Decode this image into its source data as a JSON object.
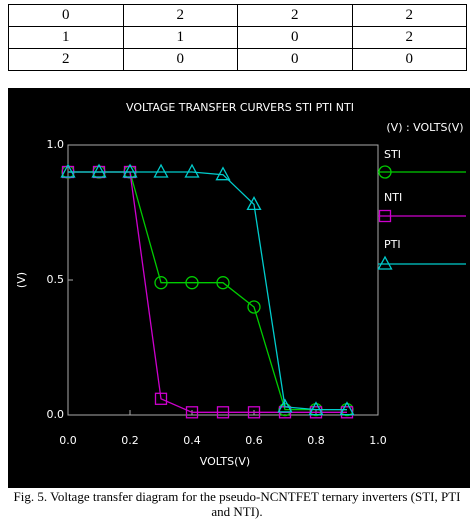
{
  "table": {
    "rows": [
      [
        "0",
        "2",
        "2",
        "2"
      ],
      [
        "1",
        "1",
        "0",
        "2"
      ],
      [
        "2",
        "0",
        "0",
        "0"
      ]
    ]
  },
  "chart_data": {
    "type": "line",
    "title": "VOLTAGE TRANSFER CURVERS STI PTI NTI",
    "units_note": "(V) : VOLTS(V)",
    "x_label": "VOLTS(V)",
    "y_label": "(V)",
    "x": [
      0,
      0.1,
      0.2,
      0.3,
      0.4,
      0.5,
      0.6,
      0.7,
      0.8,
      0.9
    ],
    "series": [
      {
        "name": "STI",
        "color": "#00cc00",
        "marker": "circle",
        "values": [
          0.9,
          0.9,
          0.9,
          0.49,
          0.49,
          0.49,
          0.4,
          0.02,
          0.02,
          0.02
        ]
      },
      {
        "name": "NTI",
        "color": "#cc00cc",
        "marker": "square",
        "values": [
          0.9,
          0.9,
          0.9,
          0.06,
          0.01,
          0.01,
          0.01,
          0.01,
          0.01,
          0.01
        ]
      },
      {
        "name": "PTI",
        "color": "#00cccc",
        "marker": "triangle",
        "values": [
          0.9,
          0.9,
          0.9,
          0.9,
          0.9,
          0.89,
          0.78,
          0.03,
          0.02,
          0.02
        ]
      }
    ],
    "xlim": [
      0,
      1
    ],
    "ylim": [
      0,
      1
    ],
    "xticks": [
      {
        "value": 0,
        "label": "0.0"
      },
      {
        "value": 0.2,
        "label": "0.2"
      },
      {
        "value": 0.4,
        "label": "0.4"
      },
      {
        "value": 0.6,
        "label": "0.6"
      },
      {
        "value": 0.8,
        "label": "0.8"
      },
      {
        "value": 1,
        "label": "1.0"
      }
    ],
    "yticks": [
      {
        "value": 0,
        "label": "0.0"
      },
      {
        "value": 0.5,
        "label": "0.5"
      },
      {
        "value": 1,
        "label": "1.0"
      }
    ]
  },
  "caption": "Fig. 5. Voltage transfer diagram for the pseudo-NCNTFET ternary inverters (STI, PTI and NTI)."
}
